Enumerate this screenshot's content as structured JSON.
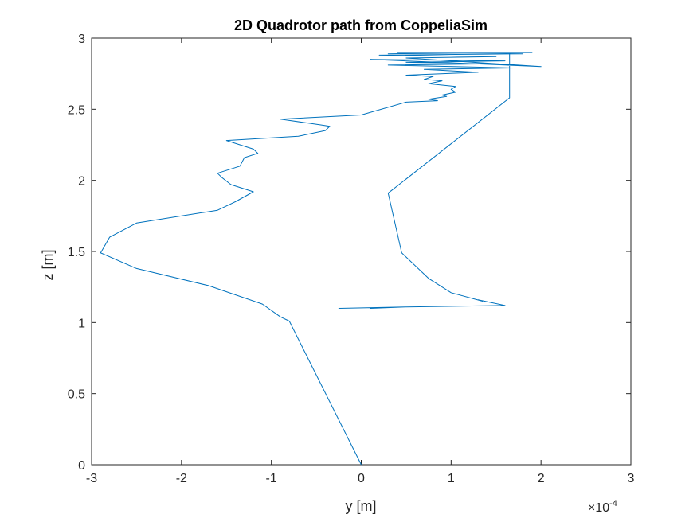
{
  "chart_data": {
    "type": "line",
    "title": "2D Quadrotor path from CoppeliaSim",
    "xlabel": "y [m]",
    "ylabel": "z [m]",
    "x_multiplier_base": "×10",
    "x_multiplier_exponent": "-4",
    "xlim": [
      -3,
      3
    ],
    "ylim": [
      0,
      3
    ],
    "xticks": [
      "-3",
      "-2",
      "-1",
      "0",
      "1",
      "2",
      "3"
    ],
    "yticks": [
      "0",
      "0.5",
      "1",
      "1.5",
      "2",
      "2.5",
      "3"
    ],
    "xtick_values": [
      -3,
      -2,
      -1,
      0,
      1,
      2,
      3
    ],
    "ytick_values": [
      0,
      0.5,
      1,
      1.5,
      2,
      2.5,
      3
    ],
    "grid": false,
    "box": true,
    "series": [
      {
        "color": "#0072BD",
        "x": [
          0.0,
          -0.8,
          -0.9,
          -1.1,
          -1.7,
          -2.5,
          -2.9,
          -2.8,
          -2.5,
          -1.6,
          -1.4,
          -1.2,
          -1.45,
          -1.55,
          -1.6,
          -1.35,
          -1.3,
          -1.15,
          -1.2,
          -1.5,
          -0.7,
          -0.4,
          -0.35,
          -0.45,
          -0.9,
          0.0,
          0.5,
          0.85,
          0.75,
          0.95,
          0.9,
          1.05,
          1.0,
          1.05,
          0.75,
          0.9,
          0.7,
          0.8,
          0.5,
          1.3,
          0.7,
          1.7,
          0.3,
          1.5,
          0.5,
          1.6,
          0.1,
          2.0,
          0.5,
          1.5,
          0.2,
          1.8,
          0.4,
          1.9,
          0.3,
          1.6,
          1.65,
          1.65,
          0.3,
          0.45,
          0.75,
          1.0,
          1.35,
          1.3,
          1.6,
          0.5,
          -0.25,
          0.5,
          0.1
        ],
        "y": [
          0.0,
          1.01,
          1.04,
          1.13,
          1.26,
          1.38,
          1.49,
          1.6,
          1.7,
          1.79,
          1.85,
          1.92,
          1.97,
          2.02,
          2.05,
          2.1,
          2.16,
          2.19,
          2.22,
          2.28,
          2.31,
          2.35,
          2.38,
          2.39,
          2.43,
          2.46,
          2.55,
          2.56,
          2.57,
          2.59,
          2.6,
          2.62,
          2.64,
          2.66,
          2.68,
          2.7,
          2.71,
          2.73,
          2.74,
          2.76,
          2.78,
          2.79,
          2.81,
          2.82,
          2.83,
          2.84,
          2.85,
          2.8,
          2.86,
          2.87,
          2.88,
          2.89,
          2.9,
          2.9,
          2.89,
          2.9,
          2.9,
          2.58,
          1.91,
          1.49,
          1.31,
          1.21,
          1.15,
          1.16,
          1.12,
          1.11,
          1.1,
          1.11,
          1.1
        ]
      }
    ]
  }
}
